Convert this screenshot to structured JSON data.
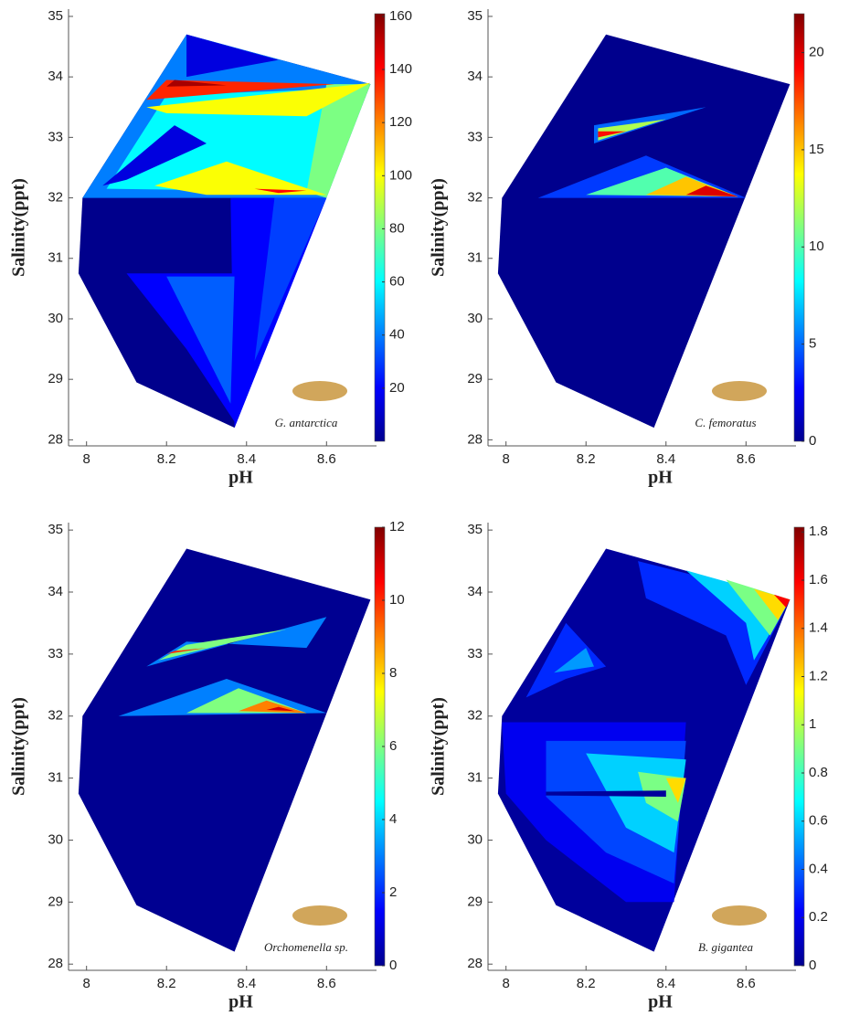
{
  "chart_data": [
    {
      "type": "contour",
      "xlabel": "pH",
      "ylabel": "Salinity(ppt)",
      "species": "G. antarctica",
      "xlim": [
        7.955,
        8.725
      ],
      "ylim": [
        27.9,
        35.12
      ],
      "xticks": [
        8,
        8.2,
        8.4,
        8.6
      ],
      "yticks": [
        28,
        29,
        30,
        31,
        32,
        33,
        34,
        35
      ],
      "clim": [
        0,
        161
      ],
      "cticks": [
        20,
        40,
        60,
        80,
        100,
        120,
        140,
        160
      ],
      "colormap": "jet",
      "background_level": 2,
      "outline": [
        [
          8.25,
          34.7
        ],
        [
          8.71,
          33.88
        ],
        [
          8.37,
          28.2
        ],
        [
          8.125,
          28.95
        ],
        [
          7.98,
          30.75
        ],
        [
          7.99,
          32.0
        ]
      ],
      "regions": [
        {
          "level": 40,
          "points": [
            [
              7.99,
              32.0
            ],
            [
              8.25,
              34.7
            ],
            [
              8.71,
              33.88
            ],
            [
              8.6,
              32.0
            ]
          ]
        },
        {
          "level": 15,
          "points": [
            [
              8.25,
              34.7
            ],
            [
              8.48,
              34.28
            ],
            [
              8.25,
              34.0
            ]
          ]
        },
        {
          "level": 60,
          "points": [
            [
              8.05,
              32.15
            ],
            [
              8.2,
              33.7
            ],
            [
              8.64,
              33.8
            ],
            [
              8.59,
              32.1
            ]
          ]
        },
        {
          "level": 80,
          "points": [
            [
              8.55,
              32.1
            ],
            [
              8.6,
              33.88
            ],
            [
              8.71,
              33.88
            ],
            [
              8.6,
              32.0
            ]
          ]
        },
        {
          "level": 100,
          "points": [
            [
              8.15,
              33.5
            ],
            [
              8.71,
              33.9
            ],
            [
              8.55,
              33.35
            ],
            [
              8.2,
              33.4
            ]
          ]
        },
        {
          "level": 135,
          "points": [
            [
              8.15,
              33.62
            ],
            [
              8.62,
              33.88
            ],
            [
              8.2,
              33.95
            ]
          ]
        },
        {
          "level": 155,
          "points": [
            [
              8.2,
              33.84
            ],
            [
              8.35,
              33.86
            ],
            [
              8.22,
              33.95
            ]
          ]
        },
        {
          "level": 15,
          "points": [
            [
              8.04,
              32.2
            ],
            [
              8.22,
              33.2
            ],
            [
              8.3,
              32.9
            ],
            [
              8.1,
              32.3
            ]
          ]
        },
        {
          "level": 100,
          "points": [
            [
              8.17,
              32.2
            ],
            [
              8.35,
              32.6
            ],
            [
              8.6,
              32.05
            ],
            [
              8.3,
              32.05
            ]
          ]
        },
        {
          "level": 140,
          "points": [
            [
              8.42,
              32.15
            ],
            [
              8.55,
              32.12
            ],
            [
              8.48,
              32.08
            ]
          ]
        },
        {
          "level": 20,
          "points": [
            [
              8.36,
              32.0
            ],
            [
              8.6,
              32.0
            ],
            [
              8.37,
              28.2
            ]
          ]
        },
        {
          "level": 30,
          "points": [
            [
              8.47,
              32.0
            ],
            [
              8.6,
              32.0
            ],
            [
              8.42,
              29.3
            ]
          ]
        },
        {
          "level": 20,
          "points": [
            [
              8.1,
              30.75
            ],
            [
              8.38,
              30.75
            ],
            [
              8.37,
              28.3
            ],
            [
              8.25,
              29.5
            ]
          ]
        },
        {
          "level": 35,
          "points": [
            [
              8.2,
              30.7
            ],
            [
              8.37,
              30.7
            ],
            [
              8.36,
              28.6
            ]
          ]
        }
      ]
    },
    {
      "type": "contour",
      "xlabel": "pH",
      "ylabel": "Salinity(ppt)",
      "species": "C. femoratus",
      "xlim": [
        7.955,
        8.725
      ],
      "ylim": [
        27.9,
        35.12
      ],
      "xticks": [
        8,
        8.2,
        8.4,
        8.6
      ],
      "yticks": [
        28,
        29,
        30,
        31,
        32,
        33,
        34,
        35
      ],
      "clim": [
        0,
        22
      ],
      "cticks": [
        0,
        5,
        10,
        15,
        20
      ],
      "colormap": "jet",
      "background_level": 0.3,
      "outline": [
        [
          8.25,
          34.7
        ],
        [
          8.71,
          33.88
        ],
        [
          8.37,
          28.2
        ],
        [
          8.125,
          28.95
        ],
        [
          7.98,
          30.75
        ],
        [
          7.99,
          32.0
        ]
      ],
      "regions": [
        {
          "level": 5,
          "points": [
            [
              8.22,
              33.2
            ],
            [
              8.5,
              33.5
            ],
            [
              8.22,
              32.9
            ]
          ]
        },
        {
          "level": 12,
          "points": [
            [
              8.23,
              33.15
            ],
            [
              8.4,
              33.3
            ],
            [
              8.23,
              32.95
            ]
          ]
        },
        {
          "level": 19,
          "points": [
            [
              8.23,
              33.1
            ],
            [
              8.3,
              33.1
            ],
            [
              8.23,
              33.0
            ]
          ]
        },
        {
          "level": 4,
          "points": [
            [
              8.08,
              32.0
            ],
            [
              8.6,
              32.0
            ],
            [
              8.35,
              32.7
            ]
          ]
        },
        {
          "level": 10,
          "points": [
            [
              8.2,
              32.05
            ],
            [
              8.58,
              32.02
            ],
            [
              8.4,
              32.5
            ]
          ]
        },
        {
          "level": 15,
          "points": [
            [
              8.35,
              32.05
            ],
            [
              8.58,
              32.02
            ],
            [
              8.45,
              32.35
            ]
          ]
        },
        {
          "level": 20,
          "points": [
            [
              8.45,
              32.05
            ],
            [
              8.58,
              32.02
            ],
            [
              8.5,
              32.2
            ]
          ]
        }
      ]
    },
    {
      "type": "contour",
      "xlabel": "pH",
      "ylabel": "Salinity(ppt)",
      "species": "Orchomenella sp.",
      "xlim": [
        7.955,
        8.725
      ],
      "ylim": [
        27.9,
        35.12
      ],
      "xticks": [
        8,
        8.2,
        8.4,
        8.6
      ],
      "yticks": [
        28,
        29,
        30,
        31,
        32,
        33,
        34,
        35
      ],
      "clim": [
        0,
        12
      ],
      "cticks": [
        0,
        2,
        4,
        6,
        8,
        10,
        12
      ],
      "colormap": "jet",
      "background_level": 0.2,
      "outline": [
        [
          8.25,
          34.7
        ],
        [
          8.71,
          33.88
        ],
        [
          8.37,
          28.2
        ],
        [
          8.125,
          28.95
        ],
        [
          7.98,
          30.75
        ],
        [
          7.99,
          32.0
        ]
      ],
      "regions": [
        {
          "level": 3,
          "points": [
            [
              8.15,
              32.8
            ],
            [
              8.6,
              33.6
            ],
            [
              8.55,
              33.1
            ],
            [
              8.25,
              33.2
            ]
          ]
        },
        {
          "level": 6,
          "points": [
            [
              8.18,
              32.9
            ],
            [
              8.5,
              33.4
            ],
            [
              8.25,
              33.15
            ]
          ]
        },
        {
          "level": 10,
          "points": [
            [
              8.2,
              33.0
            ],
            [
              8.3,
              33.1
            ],
            [
              8.22,
              33.05
            ]
          ]
        },
        {
          "level": 3,
          "points": [
            [
              8.08,
              32.0
            ],
            [
              8.6,
              32.05
            ],
            [
              8.35,
              32.6
            ]
          ]
        },
        {
          "level": 6,
          "points": [
            [
              8.25,
              32.05
            ],
            [
              8.55,
              32.05
            ],
            [
              8.38,
              32.45
            ]
          ]
        },
        {
          "level": 9,
          "points": [
            [
              8.38,
              32.08
            ],
            [
              8.55,
              32.05
            ],
            [
              8.45,
              32.25
            ]
          ]
        },
        {
          "level": 11,
          "points": [
            [
              8.45,
              32.1
            ],
            [
              8.52,
              32.08
            ],
            [
              8.48,
              32.15
            ]
          ]
        }
      ]
    },
    {
      "type": "contour",
      "xlabel": "pH",
      "ylabel": "Salinity(ppt)",
      "species": "B. gigantea",
      "xlim": [
        7.955,
        8.725
      ],
      "ylim": [
        27.9,
        35.12
      ],
      "xticks": [
        8,
        8.2,
        8.4,
        8.6
      ],
      "yticks": [
        28,
        29,
        30,
        31,
        32,
        33,
        34,
        35
      ],
      "clim": [
        0,
        1.82
      ],
      "cticks": [
        0,
        0.2,
        0.4,
        0.6,
        0.8,
        1,
        1.2,
        1.4,
        1.6,
        1.8
      ],
      "colormap": "jet",
      "background_level": 0.05,
      "outline": [
        [
          8.25,
          34.7
        ],
        [
          8.71,
          33.88
        ],
        [
          8.37,
          28.2
        ],
        [
          8.125,
          28.95
        ],
        [
          7.98,
          30.75
        ],
        [
          7.99,
          32.0
        ]
      ],
      "regions": [
        {
          "level": 0.3,
          "points": [
            [
              8.33,
              34.5
            ],
            [
              8.71,
              33.88
            ],
            [
              8.6,
              32.5
            ],
            [
              8.55,
              33.3
            ],
            [
              8.35,
              33.9
            ]
          ]
        },
        {
          "level": 0.6,
          "points": [
            [
              8.45,
              34.35
            ],
            [
              8.71,
              33.88
            ],
            [
              8.62,
              32.9
            ],
            [
              8.6,
              33.5
            ]
          ]
        },
        {
          "level": 0.9,
          "points": [
            [
              8.55,
              34.2
            ],
            [
              8.71,
              33.88
            ],
            [
              8.66,
              33.3
            ]
          ]
        },
        {
          "level": 1.2,
          "points": [
            [
              8.62,
              34.05
            ],
            [
              8.71,
              33.88
            ],
            [
              8.68,
              33.55
            ]
          ]
        },
        {
          "level": 1.6,
          "points": [
            [
              8.67,
              33.96
            ],
            [
              8.71,
              33.88
            ],
            [
              8.7,
              33.75
            ]
          ]
        },
        {
          "level": 0.3,
          "points": [
            [
              8.05,
              32.3
            ],
            [
              8.15,
              33.5
            ],
            [
              8.25,
              32.8
            ],
            [
              8.15,
              32.6
            ]
          ]
        },
        {
          "level": 0.5,
          "points": [
            [
              8.12,
              32.7
            ],
            [
              8.2,
              33.1
            ],
            [
              8.22,
              32.8
            ]
          ]
        },
        {
          "level": 0.2,
          "points": [
            [
              7.99,
              31.9
            ],
            [
              8.45,
              31.9
            ],
            [
              8.42,
              29.0
            ],
            [
              8.3,
              29.0
            ],
            [
              8.1,
              30.0
            ],
            [
              8.0,
              30.75
            ]
          ]
        },
        {
          "level": 0.35,
          "points": [
            [
              8.1,
              31.6
            ],
            [
              8.45,
              31.6
            ],
            [
              8.42,
              29.3
            ],
            [
              8.25,
              29.8
            ],
            [
              8.1,
              30.7
            ]
          ]
        },
        {
          "level": 0.6,
          "points": [
            [
              8.2,
              31.4
            ],
            [
              8.45,
              31.3
            ],
            [
              8.42,
              29.8
            ],
            [
              8.3,
              30.2
            ]
          ]
        },
        {
          "level": 0.9,
          "points": [
            [
              8.33,
              31.1
            ],
            [
              8.45,
              31.0
            ],
            [
              8.43,
              30.3
            ],
            [
              8.35,
              30.6
            ]
          ]
        },
        {
          "level": 1.2,
          "points": [
            [
              8.4,
              31.0
            ],
            [
              8.45,
              31.0
            ],
            [
              8.43,
              30.6
            ]
          ]
        },
        {
          "level": 0.05,
          "points": [
            [
              8.1,
              30.78
            ],
            [
              8.4,
              30.8
            ],
            [
              8.4,
              30.7
            ],
            [
              8.1,
              30.72
            ]
          ]
        }
      ]
    }
  ]
}
